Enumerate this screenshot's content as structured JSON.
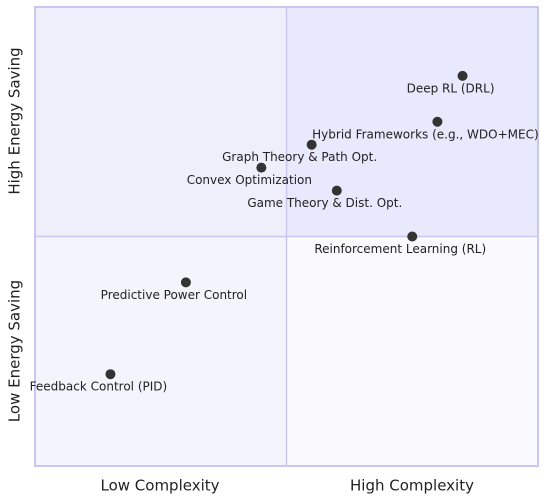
{
  "chart_data": {
    "type": "quadrant",
    "x_axis_labels": [
      "Low Complexity",
      "High Complexity"
    ],
    "y_axis_labels": [
      "Low Energy Saving",
      "High Energy Saving"
    ],
    "xlim": [
      0,
      1
    ],
    "ylim": [
      0,
      1
    ],
    "point_color": "#333333",
    "quadrant_colors": [
      "#e8e9fc",
      "#efeffc",
      "#f4f4fd",
      "#f9f9fe"
    ],
    "points": [
      {
        "label": "Deep RL (DRL)",
        "x": 0.85,
        "y": 0.85
      },
      {
        "label": "Hybrid Frameworks (e.g., WDO+MEC)",
        "x": 0.8,
        "y": 0.75
      },
      {
        "label": "Graph Theory & Path Opt.",
        "x": 0.55,
        "y": 0.7
      },
      {
        "label": "Convex Optimization",
        "x": 0.45,
        "y": 0.65
      },
      {
        "label": "Game Theory & Dist. Opt.",
        "x": 0.6,
        "y": 0.6
      },
      {
        "label": "Reinforcement Learning (RL)",
        "x": 0.75,
        "y": 0.5
      },
      {
        "label": "Predictive Power Control",
        "x": 0.3,
        "y": 0.4
      },
      {
        "label": "Feedback Control (PID)",
        "x": 0.15,
        "y": 0.2
      }
    ]
  }
}
